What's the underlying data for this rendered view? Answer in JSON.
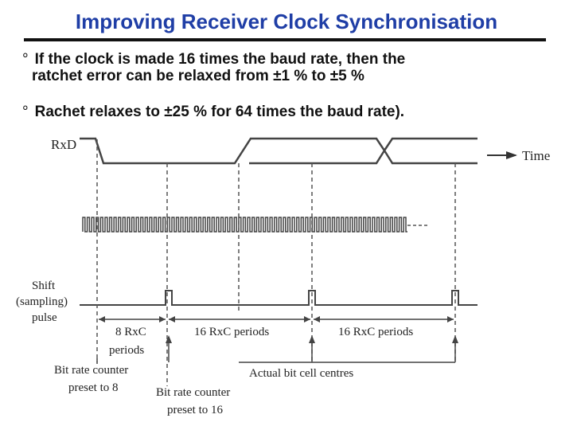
{
  "slide": {
    "title": "Improving Receiver Clock Synchronisation",
    "bullets": [
      {
        "marker": "°",
        "line1": "If the clock is made 16 times the baud rate, then the",
        "line2": "ratchet error can be relaxed from ±1 % to ±5 %"
      },
      {
        "marker": "°",
        "line1": "Rachet relaxes to ±25 % for 64 times the baud rate).",
        "line2": ""
      }
    ]
  },
  "diagram": {
    "rxd_label": "RxD",
    "time_label": "Time",
    "shift_label_1": "Shift",
    "shift_label_2": "(sampling)",
    "shift_label_3": "pulse",
    "seg1_label_1": "8 RxC",
    "seg1_label_2": "periods",
    "seg2_label": "16 RxC periods",
    "seg3_label": "16 RxC periods",
    "counter8_label_1": "Bit rate counter",
    "counter8_label_2": "preset to 8",
    "counter16_label_1": "Bit rate counter",
    "counter16_label_2": "preset to 16",
    "centres_label": "Actual bit cell centres"
  }
}
